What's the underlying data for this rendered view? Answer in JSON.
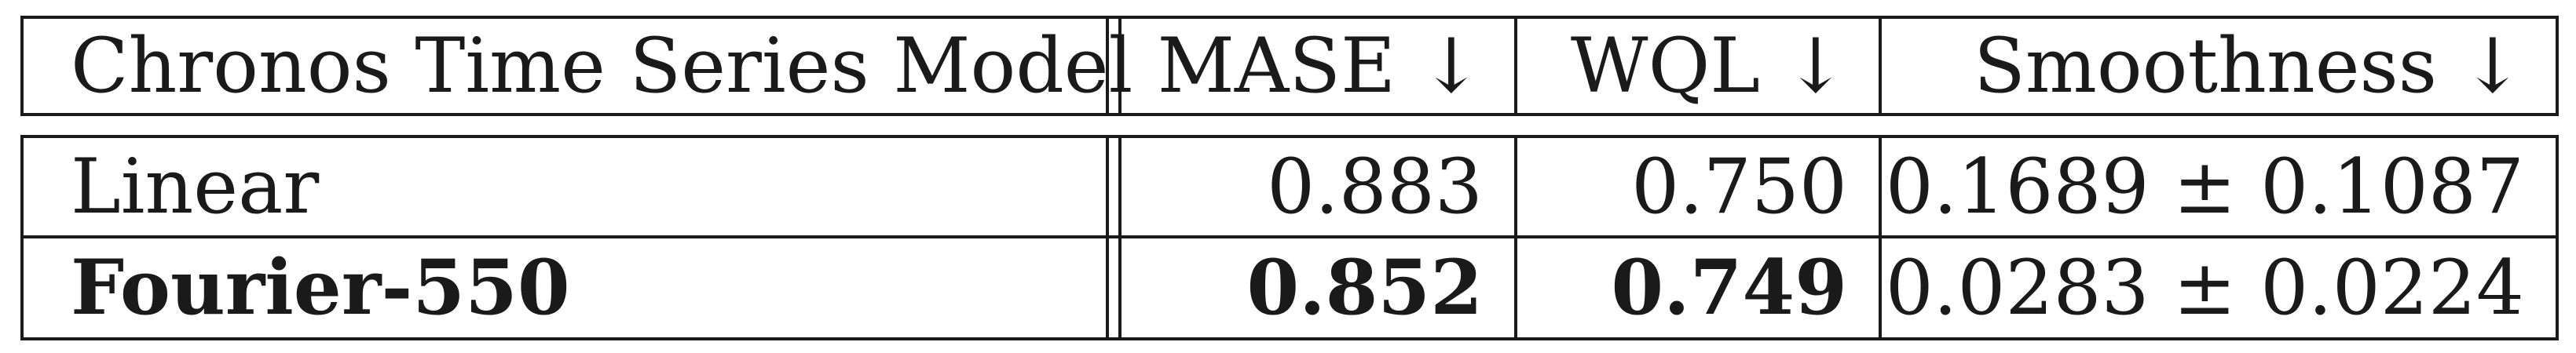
{
  "table": {
    "headers": [
      "Chronos Time Series Model",
      "MASE ↓",
      "WQL ↓",
      "Smoothness ↓"
    ],
    "rows": [
      {
        "model": "Linear",
        "mase": "0.883",
        "wql": "0.750",
        "smoothness": "0.1689 ± 0.1087"
      },
      {
        "model": "Fourier-550",
        "mase": "0.852",
        "wql": "0.749",
        "smoothness": "0.0283 ± 0.0224"
      }
    ]
  }
}
